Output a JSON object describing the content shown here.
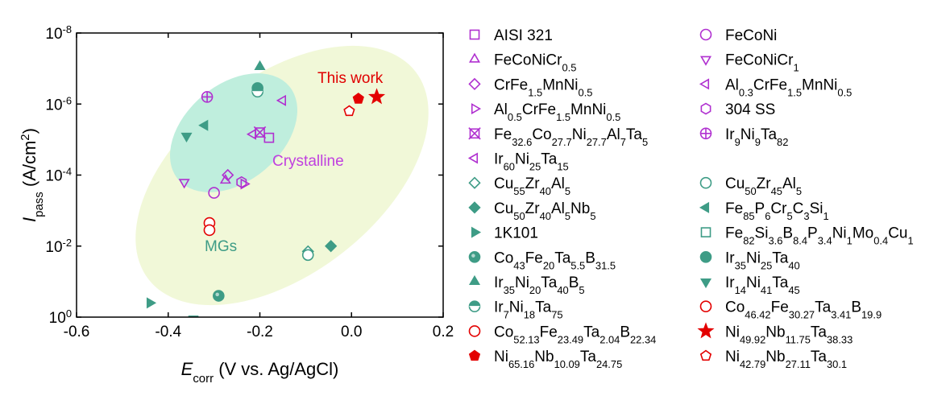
{
  "chart_data": {
    "type": "scatter",
    "xlabel": {
      "main": "E",
      "sub": "corr",
      "rest": " (V vs. Ag/AgCl)"
    },
    "ylabel": {
      "main": "I",
      "sub": "pass",
      "rest": " (A/cm",
      "sup": "2",
      "close": ")"
    },
    "xlim": [
      -0.6,
      0.2
    ],
    "ylim_log10": [
      -8,
      0
    ],
    "x_ticks": [
      {
        "value": -0.6,
        "label": "-0.6"
      },
      {
        "value": -0.4,
        "label": "-0.4"
      },
      {
        "value": -0.2,
        "label": "-0.2"
      },
      {
        "value": 0.0,
        "label": "0.0"
      },
      {
        "value": 0.2,
        "label": "0.2"
      }
    ],
    "y_ticks": [
      {
        "exp": -8,
        "base": "10",
        "sup": "-8"
      },
      {
        "exp": -6,
        "base": "10",
        "sup": "-6"
      },
      {
        "exp": -4,
        "base": "10",
        "sup": "-4"
      },
      {
        "exp": -2,
        "base": "10",
        "sup": "-2"
      },
      {
        "exp": 0,
        "base": "10",
        "sup": "0"
      }
    ],
    "regions": [
      {
        "label": "MGs",
        "color": "#f1f8d8",
        "label_color": "#3e9c86"
      },
      {
        "label": "Crystalline",
        "color": "#bfeedd",
        "label_color": "#c040e0"
      }
    ],
    "annotations": [
      {
        "text": "This work",
        "color": "#e00000"
      }
    ],
    "colors": {
      "crystalline": "#b030d0",
      "mg": "#3e9c86",
      "red": "#e30000"
    },
    "series": [
      {
        "name": [
          [
            "AISI 321",
            ""
          ]
        ],
        "marker": "square",
        "group": "crystalline",
        "points": [
          [
            -0.18,
            -5.05
          ]
        ]
      },
      {
        "name": [
          [
            "FeCoNi",
            ""
          ]
        ],
        "marker": "circle",
        "group": "crystalline",
        "points": [
          [
            -0.3,
            -3.5
          ]
        ]
      },
      {
        "name": [
          [
            "FeCoNiCr",
            ""
          ],
          [
            "0.5",
            "sub"
          ]
        ],
        "marker": "triangle-up",
        "group": "crystalline",
        "points": [
          [
            -0.275,
            -3.85
          ]
        ]
      },
      {
        "name": [
          [
            "FeCoNiCr",
            ""
          ],
          [
            "1",
            "sub"
          ]
        ],
        "marker": "triangle-down",
        "group": "crystalline",
        "points": [
          [
            -0.365,
            -3.8
          ]
        ]
      },
      {
        "name": [
          [
            "CrFe",
            ""
          ],
          [
            "1.5",
            "sub"
          ],
          [
            "MnNi",
            ""
          ],
          [
            "0.5",
            "sub"
          ]
        ],
        "marker": "diamond",
        "group": "crystalline",
        "points": [
          [
            -0.27,
            -4.0
          ]
        ]
      },
      {
        "name": [
          [
            "Al",
            ""
          ],
          [
            "0.3",
            "sub"
          ],
          [
            "CrFe",
            ""
          ],
          [
            "1.5",
            "sub"
          ],
          [
            "MnNi",
            ""
          ],
          [
            "0.5",
            "sub"
          ]
        ],
        "marker": "triangle-left",
        "group": "crystalline",
        "points": [
          [
            -0.15,
            -6.1
          ]
        ]
      },
      {
        "name": [
          [
            "Al",
            ""
          ],
          [
            "0.5",
            "sub"
          ],
          [
            "CrFe",
            ""
          ],
          [
            "1.5",
            "sub"
          ],
          [
            "MnNi",
            ""
          ],
          [
            "0.5",
            "sub"
          ]
        ],
        "marker": "triangle-right",
        "group": "crystalline",
        "points": [
          [
            -0.235,
            -3.75
          ]
        ]
      },
      {
        "name": [
          [
            "304 SS",
            ""
          ]
        ],
        "marker": "hexagon",
        "group": "crystalline",
        "points": [
          [
            -0.24,
            -3.8
          ]
        ]
      },
      {
        "name": [
          [
            "Fe",
            ""
          ],
          [
            "32.6",
            "sub"
          ],
          [
            "Co",
            ""
          ],
          [
            "27.7",
            "sub"
          ],
          [
            "Ni",
            ""
          ],
          [
            "27.7",
            "sub"
          ],
          [
            "Al",
            ""
          ],
          [
            "7",
            "sub"
          ],
          [
            "Ta",
            ""
          ],
          [
            "5",
            "sub"
          ]
        ],
        "marker": "square-x",
        "group": "crystalline",
        "points": [
          [
            -0.2,
            -5.2
          ]
        ]
      },
      {
        "name": [
          [
            "Ir",
            ""
          ],
          [
            "9",
            "sub"
          ],
          [
            "Ni",
            ""
          ],
          [
            "9",
            "sub"
          ],
          [
            "Ta",
            ""
          ],
          [
            "82",
            "sub"
          ]
        ],
        "marker": "circle-plus",
        "group": "crystalline",
        "points": [
          [
            -0.315,
            -6.2
          ]
        ]
      },
      {
        "name": [
          [
            "Ir",
            ""
          ],
          [
            "60",
            "sub"
          ],
          [
            "Ni",
            ""
          ],
          [
            "25",
            "sub"
          ],
          [
            "Ta",
            ""
          ],
          [
            "15",
            "sub"
          ]
        ],
        "marker": "triangle-left",
        "group": "crystalline",
        "points": [
          [
            -0.215,
            -5.15
          ]
        ]
      },
      {
        "name": [
          [
            "Cu",
            ""
          ],
          [
            "55",
            "sub"
          ],
          [
            "Zr",
            ""
          ],
          [
            "40",
            "sub"
          ],
          [
            "Al",
            ""
          ],
          [
            "5",
            "sub"
          ]
        ],
        "marker": "diamond-half",
        "group": "mg",
        "points": [
          [
            -0.095,
            -1.85
          ]
        ]
      },
      {
        "name": [
          [
            "Cu",
            ""
          ],
          [
            "50",
            "sub"
          ],
          [
            "Zr",
            ""
          ],
          [
            "45",
            "sub"
          ],
          [
            "Al",
            ""
          ],
          [
            "5",
            "sub"
          ]
        ],
        "marker": "circle-half",
        "group": "mg",
        "points": [
          [
            -0.095,
            -1.75
          ]
        ]
      },
      {
        "name": [
          [
            "Cu",
            ""
          ],
          [
            "50",
            "sub"
          ],
          [
            "Zr",
            ""
          ],
          [
            "40",
            "sub"
          ],
          [
            "Al",
            ""
          ],
          [
            "5",
            "sub"
          ],
          [
            "Nb",
            ""
          ],
          [
            "5",
            "sub"
          ]
        ],
        "marker": "diamond",
        "group": "mg",
        "filled": true,
        "points": [
          [
            -0.045,
            -2.0
          ]
        ]
      },
      {
        "name": [
          [
            "Fe",
            ""
          ],
          [
            "85",
            "sub"
          ],
          [
            "P",
            ""
          ],
          [
            "6",
            "sub"
          ],
          [
            "Cr",
            ""
          ],
          [
            "5",
            "sub"
          ],
          [
            "C",
            ""
          ],
          [
            "3",
            "sub"
          ],
          [
            "Si",
            ""
          ],
          [
            "1",
            "sub"
          ]
        ],
        "marker": "triangle-left",
        "group": "mg",
        "filled": true,
        "points": [
          [
            -0.32,
            -5.4
          ]
        ]
      },
      {
        "name": [
          [
            "1K101",
            ""
          ]
        ],
        "marker": "triangle-right",
        "group": "mg",
        "filled": true,
        "points": [
          [
            -0.44,
            -0.4
          ]
        ]
      },
      {
        "name": [
          [
            "Fe",
            ""
          ],
          [
            "82",
            "sub"
          ],
          [
            "Si",
            ""
          ],
          [
            "3.6",
            "sub"
          ],
          [
            "B",
            ""
          ],
          [
            "8.4",
            "sub"
          ],
          [
            "P",
            ""
          ],
          [
            "3.4",
            "sub"
          ],
          [
            "Ni",
            ""
          ],
          [
            "1",
            "sub"
          ],
          [
            "Mo",
            ""
          ],
          [
            "0.4",
            "sub"
          ],
          [
            "Cu",
            ""
          ],
          [
            "1",
            "sub"
          ]
        ],
        "marker": "square-half",
        "group": "mg",
        "points": [
          [
            -0.345,
            0.1
          ]
        ]
      },
      {
        "name": [
          [
            "Co",
            ""
          ],
          [
            "43",
            "sub"
          ],
          [
            "Fe",
            ""
          ],
          [
            "20",
            "sub"
          ],
          [
            "Ta",
            ""
          ],
          [
            "5.5",
            "sub"
          ],
          [
            "B",
            ""
          ],
          [
            "31.5",
            "sub"
          ]
        ],
        "marker": "circle-dots",
        "group": "mg",
        "points": [
          [
            -0.29,
            -0.6
          ]
        ]
      },
      {
        "name": [
          [
            "Ir",
            ""
          ],
          [
            "35",
            "sub"
          ],
          [
            "Ni",
            ""
          ],
          [
            "25",
            "sub"
          ],
          [
            "Ta",
            ""
          ],
          [
            "40",
            "sub"
          ]
        ],
        "marker": "circle",
        "group": "mg",
        "filled": true,
        "points": [
          [
            -0.205,
            -6.45
          ]
        ]
      },
      {
        "name": [
          [
            "Ir",
            ""
          ],
          [
            "35",
            "sub"
          ],
          [
            "Ni",
            ""
          ],
          [
            "20",
            "sub"
          ],
          [
            "Ta",
            ""
          ],
          [
            "40",
            "sub"
          ],
          [
            "B",
            ""
          ],
          [
            "5",
            "sub"
          ]
        ],
        "marker": "triangle-up",
        "group": "mg",
        "filled": true,
        "points": [
          [
            -0.2,
            -7.05
          ]
        ]
      },
      {
        "name": [
          [
            "Ir",
            ""
          ],
          [
            "14",
            "sub"
          ],
          [
            "Ni",
            ""
          ],
          [
            "41",
            "sub"
          ],
          [
            "Ta",
            ""
          ],
          [
            "45",
            "sub"
          ]
        ],
        "marker": "triangle-down",
        "group": "mg",
        "filled": true,
        "points": [
          [
            -0.36,
            -5.1
          ]
        ]
      },
      {
        "name": [
          [
            "Ir",
            ""
          ],
          [
            "7",
            "sub"
          ],
          [
            "Ni",
            ""
          ],
          [
            "18",
            "sub"
          ],
          [
            "Ta",
            ""
          ],
          [
            "75",
            "sub"
          ]
        ],
        "marker": "circle-split",
        "group": "mg",
        "points": [
          [
            -0.205,
            -6.35
          ]
        ]
      },
      {
        "name": [
          [
            "Co",
            ""
          ],
          [
            "46.42",
            "sub"
          ],
          [
            "Fe",
            ""
          ],
          [
            "30.27",
            "sub"
          ],
          [
            "Ta",
            ""
          ],
          [
            "3.41",
            "sub"
          ],
          [
            "B",
            ""
          ],
          [
            "19.9",
            "sub"
          ]
        ],
        "marker": "circle-half",
        "group": "red",
        "points": [
          [
            -0.31,
            -2.65
          ]
        ]
      },
      {
        "name": [
          [
            "Co",
            ""
          ],
          [
            "52.13",
            "sub"
          ],
          [
            "Fe",
            ""
          ],
          [
            "23.49",
            "sub"
          ],
          [
            "Ta",
            ""
          ],
          [
            "2.04",
            "sub"
          ],
          [
            "B",
            ""
          ],
          [
            "22.34",
            "sub"
          ]
        ],
        "marker": "circle-quarter",
        "group": "red",
        "points": [
          [
            -0.31,
            -2.45
          ]
        ]
      },
      {
        "name": [
          [
            "Ni",
            ""
          ],
          [
            "49.92",
            "sub"
          ],
          [
            "Nb",
            ""
          ],
          [
            "11.75",
            "sub"
          ],
          [
            "Ta",
            ""
          ],
          [
            "38.33",
            "sub"
          ]
        ],
        "marker": "star",
        "group": "red",
        "filled": true,
        "points": [
          [
            0.055,
            -6.2
          ]
        ]
      },
      {
        "name": [
          [
            "Ni",
            ""
          ],
          [
            "65.16",
            "sub"
          ],
          [
            "Nb",
            ""
          ],
          [
            "10.09",
            "sub"
          ],
          [
            "Ta",
            ""
          ],
          [
            "24.75",
            "sub"
          ]
        ],
        "marker": "pentagon",
        "group": "red",
        "filled": true,
        "points": [
          [
            0.015,
            -6.15
          ]
        ]
      },
      {
        "name": [
          [
            "Ni",
            ""
          ],
          [
            "42.79",
            "sub"
          ],
          [
            "Nb",
            ""
          ],
          [
            "27.11",
            "sub"
          ],
          [
            "Ta",
            ""
          ],
          [
            "30.1",
            "sub"
          ]
        ],
        "marker": "pentagon-half",
        "group": "red",
        "points": [
          [
            -0.005,
            -5.8
          ]
        ]
      }
    ],
    "legend": {
      "placement": "right",
      "columns": 2,
      "order": [
        0,
        1,
        2,
        3,
        4,
        5,
        6,
        7,
        8,
        9,
        10,
        null,
        11,
        12,
        13,
        14,
        15,
        16,
        17,
        18,
        19,
        20,
        21,
        22,
        23,
        24,
        25,
        26
      ]
    }
  }
}
